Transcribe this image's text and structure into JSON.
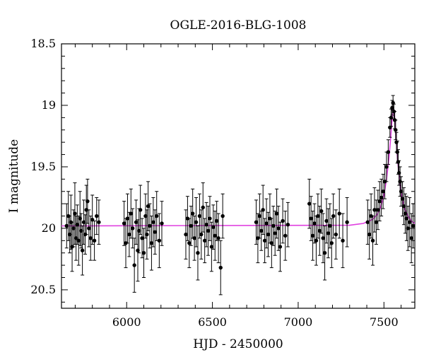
{
  "chart_data": {
    "type": "scatter",
    "title": "OGLE-2016-BLG-1008",
    "xlabel": "HJD - 2450000",
    "ylabel": "I magnitude",
    "xlim": [
      5620,
      7680
    ],
    "ylim": [
      20.65,
      18.5
    ],
    "y_inverted": true,
    "x_ticks": [
      6000,
      6500,
      7000,
      7500
    ],
    "y_ticks": [
      18.5,
      19,
      19.5,
      20,
      20.5
    ],
    "x_tick_labels": [
      "6000",
      "6500",
      "7000",
      "7500"
    ],
    "y_tick_labels": [
      "18.5",
      "19",
      "19.5",
      "20",
      "20.5"
    ],
    "grid": false,
    "legend": "none",
    "colors": {
      "points": "#000000",
      "model": "#e040e0",
      "frame": "#000000"
    },
    "model": {
      "name": "",
      "baseline_mag": 19.98,
      "t0": 7555,
      "peak_mag": 19.0,
      "x": [
        5620,
        7300,
        7380,
        7430,
        7460,
        7480,
        7500,
        7515,
        7530,
        7540,
        7548,
        7555,
        7562,
        7570,
        7580,
        7592,
        7605,
        7620,
        7640,
        7660,
        7680
      ],
      "y": [
        19.98,
        19.975,
        19.96,
        19.93,
        19.89,
        19.83,
        19.73,
        19.6,
        19.42,
        19.25,
        19.1,
        19.02,
        19.1,
        19.25,
        19.45,
        19.62,
        19.75,
        19.84,
        19.9,
        19.94,
        19.96
      ]
    },
    "series": [
      {
        "name": "",
        "points": [
          {
            "x": 5650,
            "y": 19.98,
            "e": 0.18
          },
          {
            "x": 5660,
            "y": 19.9,
            "e": 0.2
          },
          {
            "x": 5668,
            "y": 20.05,
            "e": 0.15
          },
          {
            "x": 5675,
            "y": 19.95,
            "e": 0.22
          },
          {
            "x": 5682,
            "y": 20.15,
            "e": 0.2
          },
          {
            "x": 5690,
            "y": 20.0,
            "e": 0.15
          },
          {
            "x": 5698,
            "y": 19.88,
            "e": 0.25
          },
          {
            "x": 5705,
            "y": 20.08,
            "e": 0.18
          },
          {
            "x": 5712,
            "y": 19.97,
            "e": 0.16
          },
          {
            "x": 5720,
            "y": 20.1,
            "e": 0.2
          },
          {
            "x": 5728,
            "y": 19.92,
            "e": 0.22
          },
          {
            "x": 5735,
            "y": 20.02,
            "e": 0.14
          },
          {
            "x": 5742,
            "y": 20.18,
            "e": 0.2
          },
          {
            "x": 5750,
            "y": 19.95,
            "e": 0.18
          },
          {
            "x": 5758,
            "y": 20.05,
            "e": 0.16
          },
          {
            "x": 5765,
            "y": 19.85,
            "e": 0.2
          },
          {
            "x": 5772,
            "y": 19.78,
            "e": 0.18
          },
          {
            "x": 5780,
            "y": 20.0,
            "e": 0.15
          },
          {
            "x": 5790,
            "y": 20.08,
            "e": 0.18
          },
          {
            "x": 5800,
            "y": 19.93,
            "e": 0.2
          },
          {
            "x": 5812,
            "y": 20.1,
            "e": 0.16
          },
          {
            "x": 5825,
            "y": 19.9,
            "e": 0.15
          },
          {
            "x": 5838,
            "y": 19.95,
            "e": 0.18
          },
          {
            "x": 5985,
            "y": 19.96,
            "e": 0.18
          },
          {
            "x": 5995,
            "y": 20.12,
            "e": 0.2
          },
          {
            "x": 6005,
            "y": 19.92,
            "e": 0.2
          },
          {
            "x": 6015,
            "y": 20.05,
            "e": 0.18
          },
          {
            "x": 6025,
            "y": 19.88,
            "e": 0.2
          },
          {
            "x": 6035,
            "y": 20.0,
            "e": 0.16
          },
          {
            "x": 6045,
            "y": 20.3,
            "e": 0.22
          },
          {
            "x": 6055,
            "y": 19.95,
            "e": 0.18
          },
          {
            "x": 6065,
            "y": 20.18,
            "e": 0.25
          },
          {
            "x": 6072,
            "y": 20.02,
            "e": 0.18
          },
          {
            "x": 6080,
            "y": 19.85,
            "e": 0.2
          },
          {
            "x": 6090,
            "y": 20.08,
            "e": 0.16
          },
          {
            "x": 6100,
            "y": 20.2,
            "e": 0.2
          },
          {
            "x": 6110,
            "y": 19.9,
            "e": 0.18
          },
          {
            "x": 6118,
            "y": 20.05,
            "e": 0.2
          },
          {
            "x": 6125,
            "y": 19.82,
            "e": 0.2
          },
          {
            "x": 6135,
            "y": 19.98,
            "e": 0.18
          },
          {
            "x": 6145,
            "y": 20.12,
            "e": 0.22
          },
          {
            "x": 6155,
            "y": 19.95,
            "e": 0.2
          },
          {
            "x": 6165,
            "y": 20.03,
            "e": 0.18
          },
          {
            "x": 6175,
            "y": 19.9,
            "e": 0.2
          },
          {
            "x": 6190,
            "y": 20.1,
            "e": 0.22
          },
          {
            "x": 6205,
            "y": 19.96,
            "e": 0.18
          },
          {
            "x": 6345,
            "y": 20.05,
            "e": 0.2
          },
          {
            "x": 6355,
            "y": 19.92,
            "e": 0.18
          },
          {
            "x": 6365,
            "y": 20.12,
            "e": 0.2
          },
          {
            "x": 6375,
            "y": 19.98,
            "e": 0.16
          },
          {
            "x": 6385,
            "y": 19.88,
            "e": 0.2
          },
          {
            "x": 6395,
            "y": 20.08,
            "e": 0.18
          },
          {
            "x": 6405,
            "y": 19.95,
            "e": 0.2
          },
          {
            "x": 6415,
            "y": 20.2,
            "e": 0.22
          },
          {
            "x": 6425,
            "y": 19.9,
            "e": 0.18
          },
          {
            "x": 6435,
            "y": 20.05,
            "e": 0.2
          },
          {
            "x": 6445,
            "y": 19.83,
            "e": 0.2
          },
          {
            "x": 6455,
            "y": 20.1,
            "e": 0.18
          },
          {
            "x": 6465,
            "y": 19.97,
            "e": 0.18
          },
          {
            "x": 6475,
            "y": 20.02,
            "e": 0.2
          },
          {
            "x": 6485,
            "y": 19.92,
            "e": 0.18
          },
          {
            "x": 6495,
            "y": 20.15,
            "e": 0.2
          },
          {
            "x": 6505,
            "y": 19.99,
            "e": 0.18
          },
          {
            "x": 6515,
            "y": 20.06,
            "e": 0.2
          },
          {
            "x": 6525,
            "y": 19.94,
            "e": 0.16
          },
          {
            "x": 6535,
            "y": 20.08,
            "e": 0.2
          },
          {
            "x": 6548,
            "y": 20.32,
            "e": 0.22
          },
          {
            "x": 6560,
            "y": 19.9,
            "e": 0.18
          },
          {
            "x": 6755,
            "y": 19.95,
            "e": 0.18
          },
          {
            "x": 6765,
            "y": 20.08,
            "e": 0.2
          },
          {
            "x": 6775,
            "y": 19.9,
            "e": 0.18
          },
          {
            "x": 6785,
            "y": 20.02,
            "e": 0.16
          },
          {
            "x": 6795,
            "y": 19.85,
            "e": 0.2
          },
          {
            "x": 6805,
            "y": 20.1,
            "e": 0.18
          },
          {
            "x": 6815,
            "y": 19.96,
            "e": 0.2
          },
          {
            "x": 6825,
            "y": 20.05,
            "e": 0.18
          },
          {
            "x": 6835,
            "y": 19.92,
            "e": 0.2
          },
          {
            "x": 6845,
            "y": 20.12,
            "e": 0.2
          },
          {
            "x": 6855,
            "y": 19.98,
            "e": 0.16
          },
          {
            "x": 6865,
            "y": 20.04,
            "e": 0.18
          },
          {
            "x": 6875,
            "y": 19.88,
            "e": 0.2
          },
          {
            "x": 6885,
            "y": 20.0,
            "e": 0.18
          },
          {
            "x": 6895,
            "y": 20.15,
            "e": 0.2
          },
          {
            "x": 6910,
            "y": 19.94,
            "e": 0.18
          },
          {
            "x": 6925,
            "y": 20.06,
            "e": 0.2
          },
          {
            "x": 6940,
            "y": 19.97,
            "e": 0.18
          },
          {
            "x": 7065,
            "y": 19.8,
            "e": 0.2
          },
          {
            "x": 7075,
            "y": 19.92,
            "e": 0.18
          },
          {
            "x": 7085,
            "y": 20.06,
            "e": 0.2
          },
          {
            "x": 7095,
            "y": 19.96,
            "e": 0.16
          },
          {
            "x": 7105,
            "y": 20.1,
            "e": 0.2
          },
          {
            "x": 7115,
            "y": 19.9,
            "e": 0.18
          },
          {
            "x": 7125,
            "y": 20.02,
            "e": 0.2
          },
          {
            "x": 7135,
            "y": 19.86,
            "e": 0.18
          },
          {
            "x": 7145,
            "y": 20.08,
            "e": 0.2
          },
          {
            "x": 7155,
            "y": 20.2,
            "e": 0.22
          },
          {
            "x": 7165,
            "y": 19.94,
            "e": 0.18
          },
          {
            "x": 7175,
            "y": 20.04,
            "e": 0.2
          },
          {
            "x": 7185,
            "y": 19.98,
            "e": 0.18
          },
          {
            "x": 7195,
            "y": 20.12,
            "e": 0.2
          },
          {
            "x": 7205,
            "y": 19.9,
            "e": 0.18
          },
          {
            "x": 7220,
            "y": 20.05,
            "e": 0.2
          },
          {
            "x": 7240,
            "y": 19.88,
            "e": 0.2
          },
          {
            "x": 7260,
            "y": 20.1,
            "e": 0.22
          },
          {
            "x": 7285,
            "y": 19.95,
            "e": 0.2
          },
          {
            "x": 7405,
            "y": 19.95,
            "e": 0.18
          },
          {
            "x": 7415,
            "y": 20.05,
            "e": 0.2
          },
          {
            "x": 7425,
            "y": 19.9,
            "e": 0.18
          },
          {
            "x": 7435,
            "y": 20.1,
            "e": 0.2
          },
          {
            "x": 7445,
            "y": 19.85,
            "e": 0.18
          },
          {
            "x": 7455,
            "y": 19.95,
            "e": 0.18
          },
          {
            "x": 7465,
            "y": 19.85,
            "e": 0.16
          },
          {
            "x": 7475,
            "y": 19.78,
            "e": 0.16
          },
          {
            "x": 7485,
            "y": 19.75,
            "e": 0.15
          },
          {
            "x": 7495,
            "y": 19.7,
            "e": 0.14
          },
          {
            "x": 7505,
            "y": 19.62,
            "e": 0.14
          },
          {
            "x": 7515,
            "y": 19.5,
            "e": 0.12
          },
          {
            "x": 7525,
            "y": 19.38,
            "e": 0.1
          },
          {
            "x": 7535,
            "y": 19.18,
            "e": 0.08
          },
          {
            "x": 7542,
            "y": 19.1,
            "e": 0.07
          },
          {
            "x": 7548,
            "y": 19.02,
            "e": 0.06
          },
          {
            "x": 7553,
            "y": 18.98,
            "e": 0.06
          },
          {
            "x": 7558,
            "y": 19.05,
            "e": 0.06
          },
          {
            "x": 7563,
            "y": 19.12,
            "e": 0.07
          },
          {
            "x": 7568,
            "y": 19.2,
            "e": 0.08
          },
          {
            "x": 7573,
            "y": 19.3,
            "e": 0.08
          },
          {
            "x": 7578,
            "y": 19.38,
            "e": 0.09
          },
          {
            "x": 7583,
            "y": 19.46,
            "e": 0.1
          },
          {
            "x": 7588,
            "y": 19.55,
            "e": 0.1
          },
          {
            "x": 7594,
            "y": 19.62,
            "e": 0.12
          },
          {
            "x": 7600,
            "y": 19.7,
            "e": 0.12
          },
          {
            "x": 7608,
            "y": 19.76,
            "e": 0.14
          },
          {
            "x": 7616,
            "y": 19.82,
            "e": 0.15
          },
          {
            "x": 7624,
            "y": 19.88,
            "e": 0.16
          },
          {
            "x": 7632,
            "y": 19.92,
            "e": 0.18
          },
          {
            "x": 7640,
            "y": 20.0,
            "e": 0.18
          },
          {
            "x": 7650,
            "y": 19.95,
            "e": 0.2
          },
          {
            "x": 7660,
            "y": 20.08,
            "e": 0.2
          },
          {
            "x": 7670,
            "y": 19.98,
            "e": 0.18
          }
        ]
      }
    ]
  }
}
